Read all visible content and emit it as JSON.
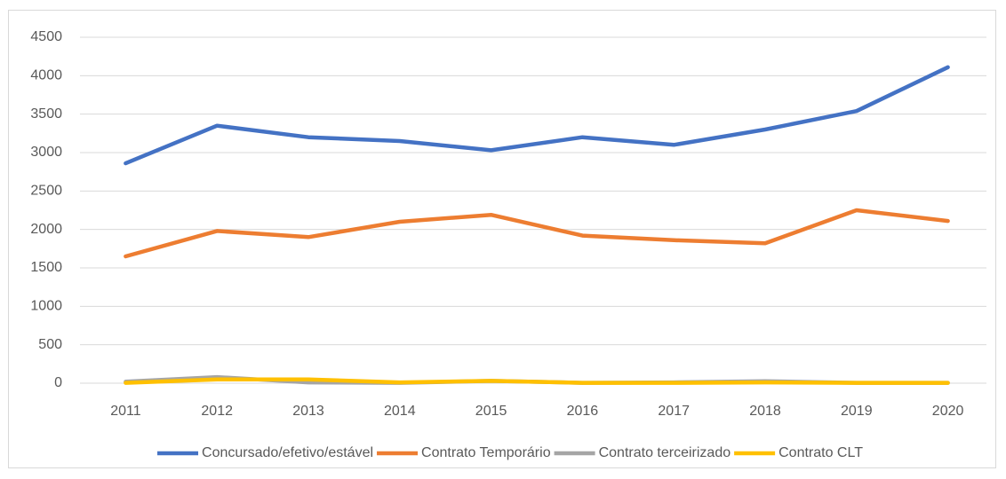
{
  "chart_data": {
    "type": "line",
    "categories": [
      "2011",
      "2012",
      "2013",
      "2014",
      "2015",
      "2016",
      "2017",
      "2018",
      "2019",
      "2020"
    ],
    "series": [
      {
        "name": "Concursado/efetivo/estável",
        "color": "#4472c4",
        "values": [
          2860,
          3350,
          3200,
          3150,
          3030,
          3200,
          3100,
          3300,
          3540,
          4110
        ]
      },
      {
        "name": "Contrato Temporário",
        "color": "#ed7d31",
        "values": [
          1650,
          1980,
          1900,
          2100,
          2190,
          1920,
          1860,
          1820,
          2250,
          2110
        ]
      },
      {
        "name": "Contrato terceirizado",
        "color": "#a5a5a5",
        "values": [
          20,
          80,
          10,
          5,
          30,
          5,
          10,
          25,
          5,
          5
        ]
      },
      {
        "name": "Contrato CLT",
        "color": "#ffc000",
        "values": [
          5,
          50,
          50,
          10,
          30,
          5,
          5,
          10,
          5,
          5
        ]
      }
    ],
    "ylim": [
      0,
      4500
    ],
    "yticks": [
      0,
      500,
      1000,
      1500,
      2000,
      2500,
      3000,
      3500,
      4000,
      4500
    ],
    "grid": true,
    "legend": "bottom"
  }
}
